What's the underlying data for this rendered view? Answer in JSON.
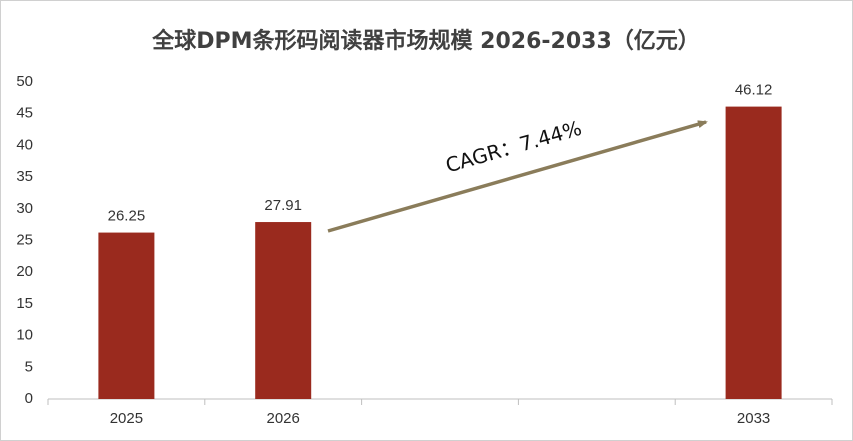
{
  "chart_data": {
    "type": "bar",
    "title": "全球DPM条形码阅读器市场规模 2026-2033（亿元）",
    "categories": [
      "2025",
      "2026",
      null,
      null,
      "2033"
    ],
    "values": [
      26.25,
      27.91,
      null,
      null,
      46.12
    ],
    "color": "#9a2a1e",
    "ylim": [
      0,
      50
    ],
    "yticks": [
      0,
      5,
      10,
      15,
      20,
      25,
      30,
      35,
      40,
      45,
      50
    ],
    "grid": false,
    "annotation": "CAGR：7.44%"
  }
}
